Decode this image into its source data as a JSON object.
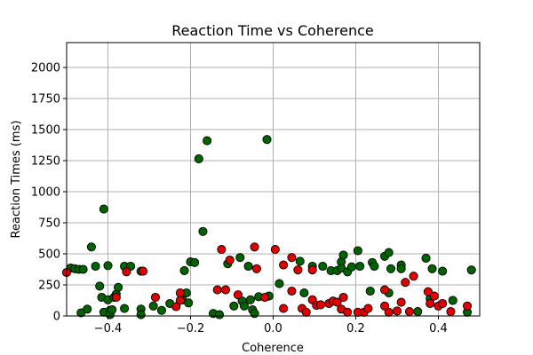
{
  "chart_data": {
    "type": "scatter",
    "title": "Reaction Time vs Coherence",
    "xlabel": "Coherence",
    "ylabel": "Reaction Times (ms)",
    "xlim": [
      -0.5,
      0.5
    ],
    "ylim": [
      0,
      2200
    ],
    "xticks": [
      -0.4,
      -0.2,
      0.0,
      0.2,
      0.4
    ],
    "xtick_labels": [
      "−0.4",
      "−0.2",
      "0.0",
      "0.2",
      "0.4"
    ],
    "yticks": [
      0,
      250,
      500,
      750,
      1000,
      1250,
      1500,
      1750,
      2000
    ],
    "ytick_labels": [
      "0",
      "250",
      "500",
      "750",
      "1000",
      "1250",
      "1500",
      "1750",
      "2000"
    ],
    "grid": true,
    "series": [
      {
        "color": "#006400",
        "points": [
          [
            -0.49,
            385
          ],
          [
            -0.48,
            380
          ],
          [
            -0.47,
            375
          ],
          [
            -0.465,
            25
          ],
          [
            -0.46,
            375
          ],
          [
            -0.45,
            55
          ],
          [
            -0.44,
            555
          ],
          [
            -0.43,
            400
          ],
          [
            -0.42,
            240
          ],
          [
            -0.415,
            150
          ],
          [
            -0.41,
            860
          ],
          [
            -0.41,
            30
          ],
          [
            -0.4,
            405
          ],
          [
            -0.4,
            130
          ],
          [
            -0.395,
            45
          ],
          [
            -0.395,
            10
          ],
          [
            -0.39,
            50
          ],
          [
            -0.385,
            150
          ],
          [
            -0.38,
            175
          ],
          [
            -0.375,
            230
          ],
          [
            -0.36,
            400
          ],
          [
            -0.36,
            60
          ],
          [
            -0.345,
            400
          ],
          [
            -0.32,
            360
          ],
          [
            -0.32,
            55
          ],
          [
            -0.32,
            10
          ],
          [
            -0.29,
            80
          ],
          [
            -0.27,
            45
          ],
          [
            -0.25,
            100
          ],
          [
            -0.22,
            130
          ],
          [
            -0.215,
            365
          ],
          [
            -0.21,
            185
          ],
          [
            -0.205,
            105
          ],
          [
            -0.2,
            435
          ],
          [
            -0.19,
            430
          ],
          [
            -0.18,
            1265
          ],
          [
            -0.17,
            680
          ],
          [
            -0.16,
            1410
          ],
          [
            -0.145,
            20
          ],
          [
            -0.13,
            10
          ],
          [
            -0.11,
            420
          ],
          [
            -0.095,
            80
          ],
          [
            -0.08,
            470
          ],
          [
            -0.075,
            120
          ],
          [
            -0.07,
            80
          ],
          [
            -0.06,
            400
          ],
          [
            -0.055,
            130
          ],
          [
            -0.05,
            50
          ],
          [
            -0.045,
            20
          ],
          [
            -0.035,
            155
          ],
          [
            -0.015,
            1420
          ],
          [
            -0.01,
            160
          ],
          [
            0.015,
            260
          ],
          [
            0.065,
            440
          ],
          [
            0.075,
            185
          ],
          [
            0.095,
            400
          ],
          [
            0.12,
            400
          ],
          [
            0.14,
            365
          ],
          [
            0.155,
            365
          ],
          [
            0.165,
            435
          ],
          [
            0.165,
            385
          ],
          [
            0.17,
            490
          ],
          [
            0.18,
            355
          ],
          [
            0.19,
            395
          ],
          [
            0.205,
            525
          ],
          [
            0.21,
            400
          ],
          [
            0.235,
            200
          ],
          [
            0.24,
            430
          ],
          [
            0.245,
            400
          ],
          [
            0.27,
            480
          ],
          [
            0.28,
            510
          ],
          [
            0.28,
            185
          ],
          [
            0.285,
            380
          ],
          [
            0.31,
            410
          ],
          [
            0.31,
            380
          ],
          [
            0.35,
            35
          ],
          [
            0.37,
            465
          ],
          [
            0.38,
            140
          ],
          [
            0.385,
            380
          ],
          [
            0.41,
            360
          ],
          [
            0.435,
            125
          ],
          [
            0.47,
            30
          ],
          [
            0.48,
            370
          ]
        ]
      },
      {
        "color": "#e00000",
        "points": [
          [
            -0.5,
            350
          ],
          [
            -0.38,
            150
          ],
          [
            -0.355,
            355
          ],
          [
            -0.315,
            360
          ],
          [
            -0.285,
            150
          ],
          [
            -0.235,
            75
          ],
          [
            -0.225,
            185
          ],
          [
            -0.225,
            125
          ],
          [
            -0.135,
            210
          ],
          [
            -0.125,
            535
          ],
          [
            -0.115,
            210
          ],
          [
            -0.105,
            450
          ],
          [
            -0.085,
            170
          ],
          [
            -0.045,
            555
          ],
          [
            -0.04,
            380
          ],
          [
            -0.02,
            150
          ],
          [
            0.005,
            535
          ],
          [
            0.025,
            410
          ],
          [
            0.025,
            60
          ],
          [
            0.045,
            470
          ],
          [
            0.045,
            200
          ],
          [
            0.06,
            370
          ],
          [
            0.07,
            60
          ],
          [
            0.08,
            30
          ],
          [
            0.095,
            370
          ],
          [
            0.095,
            130
          ],
          [
            0.105,
            85
          ],
          [
            0.115,
            90
          ],
          [
            0.135,
            100
          ],
          [
            0.145,
            120
          ],
          [
            0.155,
            110
          ],
          [
            0.165,
            55
          ],
          [
            0.17,
            150
          ],
          [
            0.18,
            30
          ],
          [
            0.205,
            30
          ],
          [
            0.22,
            30
          ],
          [
            0.23,
            60
          ],
          [
            0.27,
            210
          ],
          [
            0.27,
            80
          ],
          [
            0.28,
            30
          ],
          [
            0.3,
            40
          ],
          [
            0.31,
            110
          ],
          [
            0.32,
            270
          ],
          [
            0.33,
            35
          ],
          [
            0.34,
            320
          ],
          [
            0.375,
            195
          ],
          [
            0.38,
            100
          ],
          [
            0.39,
            160
          ],
          [
            0.4,
            80
          ],
          [
            0.41,
            100
          ],
          [
            0.43,
            35
          ],
          [
            0.47,
            80
          ]
        ]
      }
    ]
  }
}
